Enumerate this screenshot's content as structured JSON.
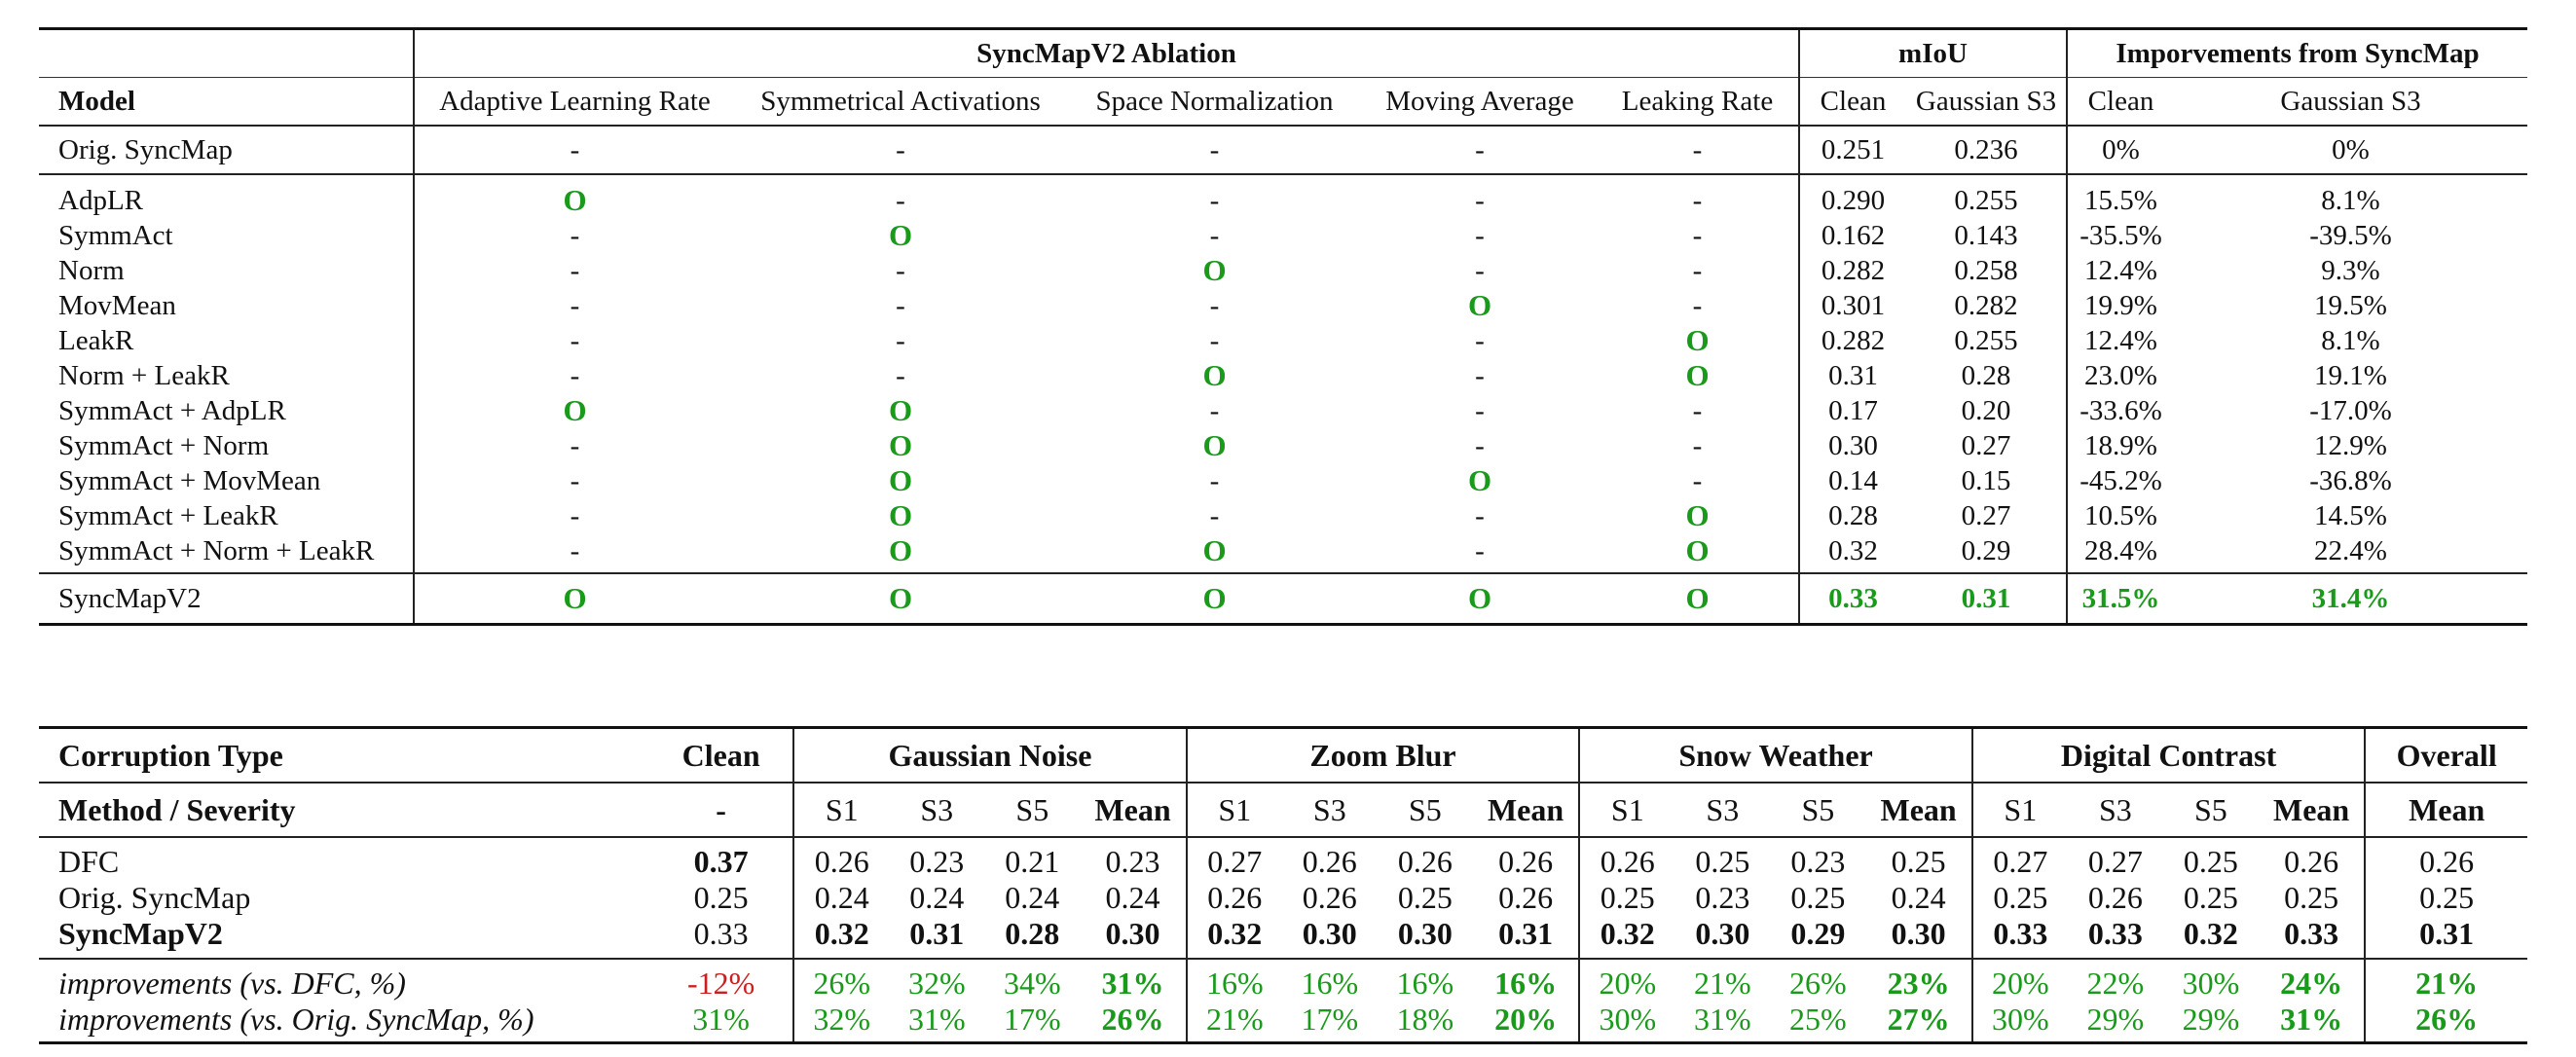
{
  "ablation_table": {
    "group_headers": {
      "ablation": "SyncMapV2 Ablation",
      "miou": "mIoU",
      "improvements": "Imporvements from SyncMap"
    },
    "columns": [
      "Model",
      "Adaptive Learning Rate",
      "Symmetrical Activations",
      "Space Normalization",
      "Moving Average",
      "Leaking Rate",
      "Clean",
      "Gaussian S3",
      "Clean",
      "Gaussian S3"
    ],
    "baseline": {
      "model": "Orig. SyncMap",
      "flags": [
        "-",
        "-",
        "-",
        "-",
        "-"
      ],
      "miou_clean": "0.251",
      "miou_gauss": "0.236",
      "imp_clean": "0%",
      "imp_gauss": "0%"
    },
    "rows": [
      {
        "model": "AdpLR",
        "flags": [
          "O",
          "-",
          "-",
          "-",
          "-"
        ],
        "miou_clean": "0.290",
        "miou_gauss": "0.255",
        "imp_clean": "15.5%",
        "imp_gauss": "8.1%"
      },
      {
        "model": "SymmAct",
        "flags": [
          "-",
          "O",
          "-",
          "-",
          "-"
        ],
        "miou_clean": "0.162",
        "miou_gauss": "0.143",
        "imp_clean": "-35.5%",
        "imp_gauss": "-39.5%"
      },
      {
        "model": "Norm",
        "flags": [
          "-",
          "-",
          "O",
          "-",
          "-"
        ],
        "miou_clean": "0.282",
        "miou_gauss": "0.258",
        "imp_clean": "12.4%",
        "imp_gauss": "9.3%"
      },
      {
        "model": "MovMean",
        "flags": [
          "-",
          "-",
          "-",
          "O",
          "-"
        ],
        "miou_clean": "0.301",
        "miou_gauss": "0.282",
        "imp_clean": "19.9%",
        "imp_gauss": "19.5%"
      },
      {
        "model": "LeakR",
        "flags": [
          "-",
          "-",
          "-",
          "-",
          "O"
        ],
        "miou_clean": "0.282",
        "miou_gauss": "0.255",
        "imp_clean": "12.4%",
        "imp_gauss": "8.1%"
      },
      {
        "model": "Norm + LeakR",
        "flags": [
          "-",
          "-",
          "O",
          "-",
          "O"
        ],
        "miou_clean": "0.31",
        "miou_gauss": "0.28",
        "imp_clean": "23.0%",
        "imp_gauss": "19.1%"
      },
      {
        "model": "SymmAct + AdpLR",
        "flags": [
          "O",
          "O",
          "-",
          "-",
          "-"
        ],
        "miou_clean": "0.17",
        "miou_gauss": "0.20",
        "imp_clean": "-33.6%",
        "imp_gauss": "-17.0%"
      },
      {
        "model": "SymmAct + Norm",
        "flags": [
          "-",
          "O",
          "O",
          "-",
          "-"
        ],
        "miou_clean": "0.30",
        "miou_gauss": "0.27",
        "imp_clean": "18.9%",
        "imp_gauss": "12.9%"
      },
      {
        "model": "SymmAct + MovMean",
        "flags": [
          "-",
          "O",
          "-",
          "O",
          "-"
        ],
        "miou_clean": "0.14",
        "miou_gauss": "0.15",
        "imp_clean": "-45.2%",
        "imp_gauss": "-36.8%"
      },
      {
        "model": "SymmAct + LeakR",
        "flags": [
          "-",
          "O",
          "-",
          "-",
          "O"
        ],
        "miou_clean": "0.28",
        "miou_gauss": "0.27",
        "imp_clean": "10.5%",
        "imp_gauss": "14.5%"
      },
      {
        "model": "SymmAct + Norm + LeakR",
        "flags": [
          "-",
          "O",
          "O",
          "-",
          "O"
        ],
        "miou_clean": "0.32",
        "miou_gauss": "0.29",
        "imp_clean": "28.4%",
        "imp_gauss": "22.4%"
      }
    ],
    "final": {
      "model": "SyncMapV2",
      "flags": [
        "O",
        "O",
        "O",
        "O",
        "O"
      ],
      "miou_clean": "0.33",
      "miou_gauss": "0.31",
      "imp_clean": "31.5%",
      "imp_gauss": "31.4%"
    }
  },
  "corruption_table": {
    "header1": {
      "corruption_type": "Corruption Type",
      "clean": "Clean",
      "gaussian": "Gaussian Noise",
      "zoom": "Zoom Blur",
      "snow": "Snow Weather",
      "digital": "Digital Contrast",
      "overall": "Overall"
    },
    "header2": {
      "method": "Method / Severity",
      "clean": "-",
      "s1": "S1",
      "s3": "S3",
      "s5": "S5",
      "mean": "Mean"
    },
    "rows": [
      {
        "method": "DFC",
        "clean": "0.37",
        "values": [
          "0.26",
          "0.23",
          "0.21",
          "0.23",
          "0.27",
          "0.26",
          "0.26",
          "0.26",
          "0.26",
          "0.25",
          "0.23",
          "0.25",
          "0.27",
          "0.27",
          "0.25",
          "0.26"
        ],
        "overall": "0.26"
      },
      {
        "method": "Orig. SyncMap",
        "clean": "0.25",
        "values": [
          "0.24",
          "0.24",
          "0.24",
          "0.24",
          "0.26",
          "0.26",
          "0.25",
          "0.26",
          "0.25",
          "0.23",
          "0.25",
          "0.24",
          "0.25",
          "0.26",
          "0.25",
          "0.25"
        ],
        "overall": "0.25"
      },
      {
        "method": "SyncMapV2",
        "clean": "0.33",
        "values": [
          "0.32",
          "0.31",
          "0.28",
          "0.30",
          "0.32",
          "0.30",
          "0.30",
          "0.31",
          "0.32",
          "0.30",
          "0.29",
          "0.30",
          "0.33",
          "0.33",
          "0.32",
          "0.33"
        ],
        "overall": "0.31"
      }
    ],
    "improvements": [
      {
        "method": "improvements (vs. DFC, %)",
        "clean": "-12%",
        "values": [
          "26%",
          "32%",
          "34%",
          "31%",
          "16%",
          "16%",
          "16%",
          "16%",
          "20%",
          "21%",
          "26%",
          "23%",
          "20%",
          "22%",
          "30%",
          "24%"
        ],
        "overall": "21%"
      },
      {
        "method": "improvements (vs. Orig. SyncMap, %)",
        "clean": "31%",
        "values": [
          "32%",
          "31%",
          "17%",
          "26%",
          "21%",
          "17%",
          "18%",
          "20%",
          "30%",
          "31%",
          "25%",
          "27%",
          "30%",
          "29%",
          "29%",
          "31%"
        ],
        "overall": "26%"
      }
    ]
  }
}
